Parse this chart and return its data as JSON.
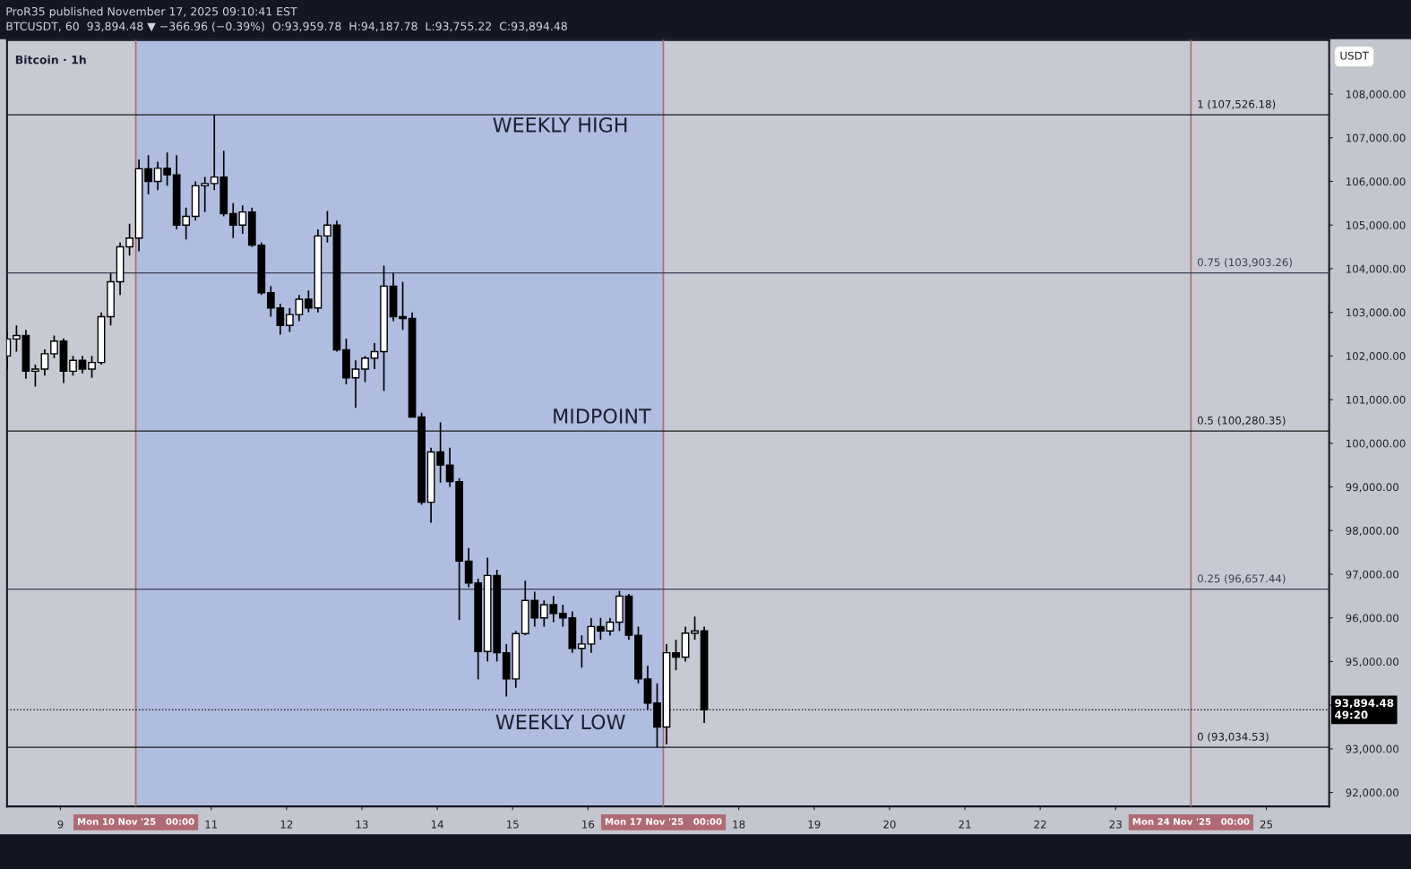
{
  "chart_data": {
    "type": "candlestick",
    "title": "ProR35 published November 17, 2025 09:10:41 EST",
    "subtitle": "BTCUSDT, 60  93,894.48 ▼ −366.96 (−0.39%)  O:93,959.78  H:94,187.78  L:93,755.22  C:93,894.48",
    "ylabel": "USDT",
    "x": [
      "2025-11-08T07:00",
      "2025-11-08T10:00",
      "2025-11-08T13:00",
      "2025-11-08T16:00",
      "2025-11-08T19:00",
      "2025-11-08T22:00",
      "2025-11-09T01:00",
      "2025-11-09T04:00",
      "2025-11-09T07:00",
      "2025-11-09T10:00",
      "2025-11-09T13:00",
      "2025-11-09T16:00",
      "2025-11-09T19:00",
      "2025-11-09T22:00",
      "2025-11-10T01:00",
      "2025-11-10T04:00",
      "2025-11-10T07:00",
      "2025-11-10T10:00",
      "2025-11-10T13:00",
      "2025-11-10T16:00",
      "2025-11-10T19:00",
      "2025-11-10T22:00",
      "2025-11-11T01:00",
      "2025-11-11T04:00",
      "2025-11-11T07:00",
      "2025-11-11T10:00",
      "2025-11-11T13:00",
      "2025-11-11T16:00",
      "2025-11-11T19:00",
      "2025-11-11T22:00",
      "2025-11-12T01:00",
      "2025-11-12T04:00",
      "2025-11-12T07:00",
      "2025-11-12T10:00",
      "2025-11-12T13:00",
      "2025-11-12T16:00",
      "2025-11-12T19:00",
      "2025-11-12T22:00",
      "2025-11-13T01:00",
      "2025-11-13T04:00",
      "2025-11-13T07:00",
      "2025-11-13T10:00",
      "2025-11-13T13:00",
      "2025-11-13T16:00",
      "2025-11-13T19:00",
      "2025-11-13T22:00",
      "2025-11-14T01:00",
      "2025-11-14T04:00",
      "2025-11-14T07:00",
      "2025-11-14T10:00",
      "2025-11-14T13:00",
      "2025-11-14T16:00",
      "2025-11-14T19:00",
      "2025-11-14T22:00",
      "2025-11-15T01:00",
      "2025-11-15T04:00",
      "2025-11-15T07:00",
      "2025-11-15T10:00",
      "2025-11-15T13:00",
      "2025-11-15T16:00",
      "2025-11-15T19:00",
      "2025-11-15T22:00",
      "2025-11-16T01:00",
      "2025-11-16T04:00",
      "2025-11-16T07:00",
      "2025-11-16T10:00",
      "2025-11-16T13:00",
      "2025-11-16T16:00",
      "2025-11-16T19:00",
      "2025-11-16T22:00",
      "2025-11-17T01:00",
      "2025-11-17T04:00",
      "2025-11-17T07:00",
      "2025-11-17T10:00",
      "2025-11-17T13:00"
    ],
    "ohlc": [
      [
        102000,
        102550,
        101700,
        102390
      ],
      [
        102390,
        102700,
        102100,
        102470
      ],
      [
        102470,
        102600,
        101480,
        101650
      ],
      [
        101650,
        101800,
        101300,
        101700
      ],
      [
        101700,
        102150,
        101550,
        102050
      ],
      [
        102050,
        102470,
        101950,
        102340
      ],
      [
        102340,
        102400,
        101380,
        101650
      ],
      [
        101650,
        102000,
        101550,
        101900
      ],
      [
        101900,
        102000,
        101600,
        101700
      ],
      [
        101700,
        102000,
        101500,
        101850
      ],
      [
        101850,
        103000,
        101800,
        102900
      ],
      [
        102900,
        103900,
        102700,
        103700
      ],
      [
        103700,
        104600,
        103400,
        104500
      ],
      [
        104500,
        105030,
        104300,
        104700
      ],
      [
        104700,
        106500,
        104400,
        106290
      ],
      [
        106290,
        106600,
        105700,
        106000
      ],
      [
        106000,
        106450,
        105800,
        106300
      ],
      [
        106300,
        106660,
        105900,
        106150
      ],
      [
        106150,
        106600,
        104900,
        105000
      ],
      [
        105000,
        105400,
        104670,
        105200
      ],
      [
        105200,
        106000,
        105100,
        105900
      ],
      [
        105900,
        106100,
        105300,
        105950
      ],
      [
        105950,
        107526,
        105800,
        106100
      ],
      [
        106100,
        106700,
        105200,
        105260
      ],
      [
        105260,
        105500,
        104700,
        105000
      ],
      [
        105000,
        105450,
        104800,
        105300
      ],
      [
        105300,
        105400,
        104500,
        104540
      ],
      [
        104540,
        104600,
        103400,
        103450
      ],
      [
        103450,
        103600,
        102900,
        103100
      ],
      [
        103100,
        103200,
        102490,
        102700
      ],
      [
        102700,
        103100,
        102550,
        102950
      ],
      [
        102950,
        103400,
        102800,
        103300
      ],
      [
        103300,
        103500,
        103000,
        103100
      ],
      [
        103100,
        104900,
        103000,
        104750
      ],
      [
        104750,
        105320,
        104600,
        105000
      ],
      [
        105000,
        105100,
        102100,
        102140
      ],
      [
        102140,
        102400,
        101350,
        101500
      ],
      [
        101500,
        101900,
        100810,
        101700
      ],
      [
        101700,
        102000,
        101400,
        101950
      ],
      [
        101950,
        102300,
        101700,
        102100
      ],
      [
        102100,
        104070,
        101200,
        103600
      ],
      [
        103600,
        103900,
        102800,
        102900
      ],
      [
        102900,
        103700,
        102600,
        102860
      ],
      [
        102860,
        103000,
        100600,
        100600
      ],
      [
        100600,
        100700,
        98590,
        98650
      ],
      [
        98650,
        99900,
        98180,
        99800
      ],
      [
        99800,
        100480,
        99100,
        99500
      ],
      [
        99500,
        99900,
        99000,
        99120
      ],
      [
        99120,
        99200,
        95950,
        97300
      ],
      [
        97300,
        97600,
        96700,
        96800
      ],
      [
        96800,
        96900,
        94590,
        95230
      ],
      [
        95230,
        97380,
        95000,
        96970
      ],
      [
        96970,
        97100,
        95000,
        95200
      ],
      [
        95200,
        95400,
        94200,
        94600
      ],
      [
        94600,
        95700,
        94400,
        95640
      ],
      [
        95640,
        96850,
        95600,
        96400
      ],
      [
        96400,
        96600,
        95800,
        96000
      ],
      [
        96000,
        96400,
        95800,
        96300
      ],
      [
        96300,
        96500,
        95900,
        96100
      ],
      [
        96100,
        96300,
        95800,
        96000
      ],
      [
        96000,
        96150,
        95200,
        95300
      ],
      [
        95300,
        95600,
        94860,
        95400
      ],
      [
        95400,
        96000,
        95200,
        95800
      ],
      [
        95800,
        96000,
        95500,
        95700
      ],
      [
        95700,
        96000,
        95600,
        95900
      ],
      [
        95900,
        96620,
        95700,
        96500
      ],
      [
        96500,
        96550,
        95500,
        95600
      ],
      [
        95600,
        95800,
        94500,
        94600
      ],
      [
        94600,
        94900,
        93900,
        94050
      ],
      [
        94050,
        94500,
        93035,
        93500
      ],
      [
        93500,
        95400,
        93100,
        95200
      ],
      [
        95200,
        95500,
        94800,
        95100
      ],
      [
        95100,
        95800,
        95000,
        95650
      ],
      [
        95650,
        96030,
        95500,
        95700
      ],
      [
        95700,
        95800,
        93590,
        93894.48
      ]
    ],
    "xlim": [
      "2025-11-08T07:00",
      "2025-11-25T20:00"
    ],
    "xticks": [
      {
        "value": "2025-11-09",
        "label": "9"
      },
      {
        "value": "2025-11-11",
        "label": "11"
      },
      {
        "value": "2025-11-12",
        "label": "12"
      },
      {
        "value": "2025-11-13",
        "label": "13"
      },
      {
        "value": "2025-11-14",
        "label": "14"
      },
      {
        "value": "2025-11-15",
        "label": "15"
      },
      {
        "value": "2025-11-16",
        "label": "16"
      },
      {
        "value": "2025-11-18",
        "label": "18"
      },
      {
        "value": "2025-11-19",
        "label": "19"
      },
      {
        "value": "2025-11-20",
        "label": "20"
      },
      {
        "value": "2025-11-21",
        "label": "21"
      },
      {
        "value": "2025-11-22",
        "label": "22"
      },
      {
        "value": "2025-11-23",
        "label": "23"
      },
      {
        "value": "2025-11-25",
        "label": "25"
      }
    ],
    "ylim": [
      91680,
      109240
    ],
    "yticks": [
      {
        "value": 92000,
        "label": "92,000.00"
      },
      {
        "value": 93000,
        "label": "93,000.00"
      },
      {
        "value": 94000,
        "label": null
      },
      {
        "value": 95000,
        "label": "95,000.00"
      },
      {
        "value": 96000,
        "label": "96,000.00"
      },
      {
        "value": 97000,
        "label": "97,000.00"
      },
      {
        "value": 98000,
        "label": "98,000.00"
      },
      {
        "value": 99000,
        "label": "99,000.00"
      },
      {
        "value": 100000,
        "label": "100,000.00"
      },
      {
        "value": 101000,
        "label": "101,000.00"
      },
      {
        "value": 102000,
        "label": "102,000.00"
      },
      {
        "value": 103000,
        "label": "103,000.00"
      },
      {
        "value": 104000,
        "label": "104,000.00"
      },
      {
        "value": 105000,
        "label": "105,000.00"
      },
      {
        "value": 106000,
        "label": "106,000.00"
      },
      {
        "value": 107000,
        "label": "107,000.00"
      },
      {
        "value": 108000,
        "label": "108,000.00"
      }
    ],
    "bands": [
      {
        "axis": "x",
        "from": "2025-11-10",
        "to": "2025-11-17",
        "color": "#a9b9e3"
      }
    ],
    "ref_lines": [
      {
        "axis": "x",
        "value": "2025-11-10",
        "label": "Mon 10 Nov '25   00:00",
        "color": "#b06a74"
      },
      {
        "axis": "x",
        "value": "2025-11-17",
        "label": "Mon 17 Nov '25   00:00",
        "color": "#b06a74"
      },
      {
        "axis": "x",
        "value": "2025-11-24",
        "label": "Mon 24 Nov '25   00:00",
        "color": "#b06a74"
      },
      {
        "axis": "y",
        "value": 107526.18,
        "label": "1 (107,526.18)",
        "color": "#1a1a1a"
      },
      {
        "axis": "y",
        "value": 103903.26,
        "label": "0.75 (103,903.26)",
        "color": "#3a4055"
      },
      {
        "axis": "y",
        "value": 100280.35,
        "label": "0.5 (100,280.35)",
        "color": "#1a1a1a"
      },
      {
        "axis": "y",
        "value": 96657.44,
        "label": "0.25 (96,657.44)",
        "color": "#3a4055"
      },
      {
        "axis": "y",
        "value": 93034.53,
        "label": "0 (93,034.53)",
        "color": "#1a1a1a"
      },
      {
        "axis": "y",
        "value": 93894.48,
        "label": "93,894.48\n49:20",
        "color": "#202020",
        "line_style": "dotted"
      }
    ],
    "annotations": [
      "Bitcoin · 1h",
      "WEEKLY HIGH",
      "MIDPOINT",
      "WEEKLY LOW"
    ]
  }
}
